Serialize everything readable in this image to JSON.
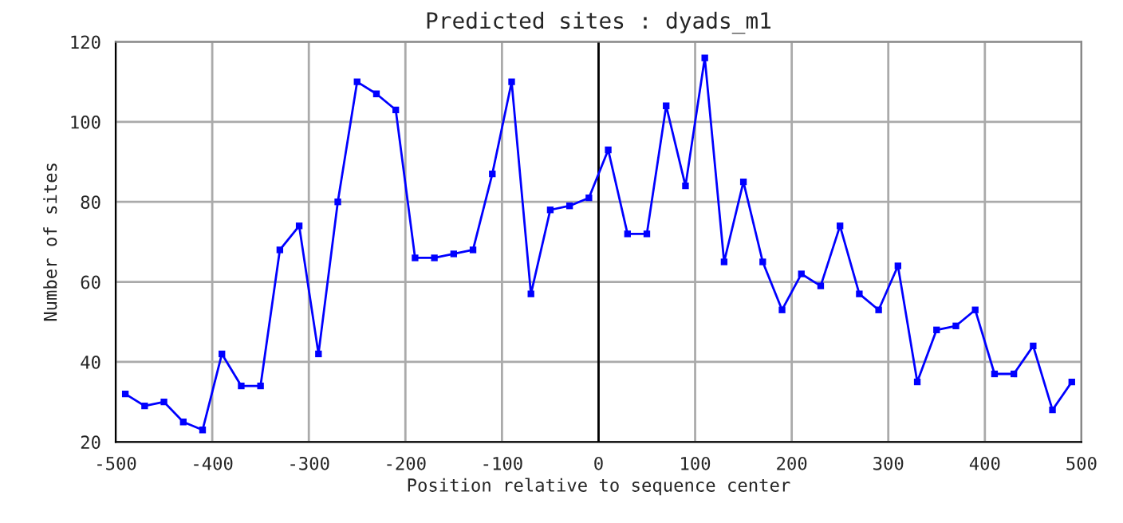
{
  "chart_data": {
    "type": "line",
    "title": "Predicted sites : dyads_m1",
    "xlabel": "Position relative to sequence center",
    "ylabel": "Number of sites",
    "x": [
      -490,
      -470,
      -450,
      -430,
      -410,
      -390,
      -370,
      -350,
      -330,
      -310,
      -290,
      -270,
      -250,
      -230,
      -210,
      -190,
      -170,
      -150,
      -130,
      -110,
      -90,
      -70,
      -50,
      -30,
      -10,
      10,
      30,
      50,
      70,
      90,
      110,
      130,
      150,
      170,
      190,
      210,
      230,
      250,
      270,
      290,
      310,
      330,
      350,
      370,
      390,
      410,
      430,
      450,
      470,
      490
    ],
    "series": [
      {
        "color": "#0000ff",
        "values": [
          32,
          29,
          30,
          25,
          23,
          42,
          34,
          34,
          68,
          74,
          42,
          80,
          110,
          107,
          103,
          66,
          66,
          67,
          68,
          87,
          110,
          57,
          78,
          79,
          81,
          93,
          72,
          72,
          104,
          84,
          116,
          65,
          85,
          65,
          53,
          62,
          59,
          74,
          57,
          53,
          64,
          35,
          48,
          49,
          53,
          37,
          37,
          44,
          28,
          35
        ]
      }
    ],
    "xlim": [
      -500,
      500
    ],
    "xticks": [
      -500,
      -400,
      -300,
      -200,
      -100,
      0,
      100,
      200,
      300,
      400,
      500
    ],
    "ylim": [
      20,
      120
    ],
    "yticks": [
      20,
      40,
      60,
      80,
      100,
      120
    ],
    "ref_lines": [
      {
        "axis": "x",
        "value": 0,
        "color": "#000000"
      }
    ],
    "grid": true,
    "marker": "square",
    "line_style": "solid"
  }
}
